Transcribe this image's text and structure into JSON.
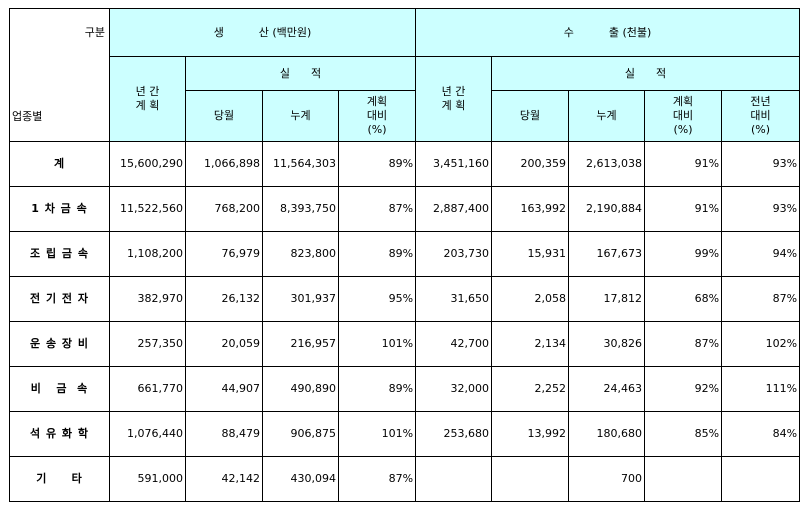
{
  "header": {
    "corner_category": "구분",
    "corner_industry": "업종별",
    "production_group": "생          산 (백만원)",
    "export_group": "수          출 (천불)",
    "annual_plan": "년 간\n계 획",
    "results": "실      적",
    "current_month": "당월",
    "cumulative": "누계",
    "plan_ratio": "계획\n대비\n(%)",
    "prev_year_ratio": "전년\n대비\n(%)"
  },
  "rows": [
    {
      "label": "계",
      "p_plan": "15,600,290",
      "p_month": "1,066,898",
      "p_cum": "11,564,303",
      "p_ratio": "89%",
      "e_plan": "3,451,160",
      "e_month": "200,359",
      "e_cum": "2,613,038",
      "e_ratio": "91%",
      "e_prev": "93%"
    },
    {
      "label": "1 차 금 속",
      "p_plan": "11,522,560",
      "p_month": "768,200",
      "p_cum": "8,393,750",
      "p_ratio": "87%",
      "e_plan": "2,887,400",
      "e_month": "163,992",
      "e_cum": "2,190,884",
      "e_ratio": "91%",
      "e_prev": "93%"
    },
    {
      "label": "조 립 금 속",
      "p_plan": "1,108,200",
      "p_month": "76,979",
      "p_cum": "823,800",
      "p_ratio": "89%",
      "e_plan": "203,730",
      "e_month": "15,931",
      "e_cum": "167,673",
      "e_ratio": "99%",
      "e_prev": "94%"
    },
    {
      "label": "전 기 전 자",
      "p_plan": "382,970",
      "p_month": "26,132",
      "p_cum": "301,937",
      "p_ratio": "95%",
      "e_plan": "31,650",
      "e_month": "2,058",
      "e_cum": "17,812",
      "e_ratio": "68%",
      "e_prev": "87%"
    },
    {
      "label": "운 송 장 비",
      "p_plan": "257,350",
      "p_month": "20,059",
      "p_cum": "216,957",
      "p_ratio": "101%",
      "e_plan": "42,700",
      "e_month": "2,134",
      "e_cum": "30,826",
      "e_ratio": "87%",
      "e_prev": "102%"
    },
    {
      "label": "비   금  속",
      "p_plan": "661,770",
      "p_month": "44,907",
      "p_cum": "490,890",
      "p_ratio": "89%",
      "e_plan": "32,000",
      "e_month": "2,252",
      "e_cum": "24,463",
      "e_ratio": "92%",
      "e_prev": "111%"
    },
    {
      "label": "석 유 화 학",
      "p_plan": "1,076,440",
      "p_month": "88,479",
      "p_cum": "906,875",
      "p_ratio": "101%",
      "e_plan": "253,680",
      "e_month": "13,992",
      "e_cum": "180,680",
      "e_ratio": "85%",
      "e_prev": "84%"
    },
    {
      "label": "기     타",
      "p_plan": "591,000",
      "p_month": "42,142",
      "p_cum": "430,094",
      "p_ratio": "87%",
      "e_plan": "",
      "e_month": "",
      "e_cum": "700",
      "e_ratio": "",
      "e_prev": ""
    }
  ]
}
